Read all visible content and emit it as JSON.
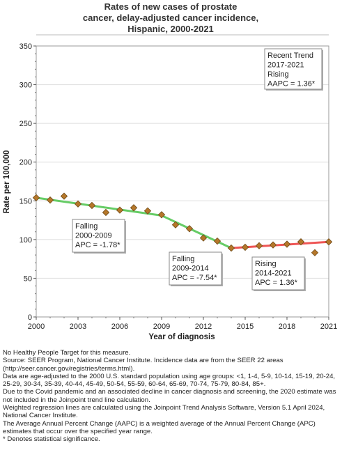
{
  "chart_data": {
    "type": "line",
    "title_lines": [
      "Rates of new cases of prostate",
      "cancer, delay-adjusted cancer incidence,",
      "Hispanic,  2000-2021"
    ],
    "xlabel": "Year of diagnosis",
    "ylabel": "Rate per 100,000",
    "xlim": [
      2000,
      2021
    ],
    "ylim": [
      0,
      350
    ],
    "x_ticks": [
      2000,
      2003,
      2006,
      2009,
      2012,
      2015,
      2018,
      2021
    ],
    "y_ticks": [
      0,
      50,
      100,
      150,
      200,
      250,
      300,
      350
    ],
    "grid": "horizontal",
    "observed": {
      "x": [
        2000,
        2001,
        2002,
        2003,
        2004,
        2005,
        2006,
        2007,
        2008,
        2009,
        2010,
        2011,
        2012,
        2013,
        2014,
        2015,
        2016,
        2017,
        2018,
        2019,
        2020,
        2021
      ],
      "y": [
        154,
        151,
        156,
        146,
        144,
        135,
        138,
        141,
        137,
        132,
        119,
        114,
        102,
        98,
        89,
        90,
        92,
        93,
        94,
        97,
        83,
        97
      ],
      "marker_color": "#b5772a"
    },
    "trend_segments": [
      {
        "x": [
          2000,
          2009
        ],
        "y": [
          154,
          131
        ],
        "color": "#66cc66"
      },
      {
        "x": [
          2009,
          2014
        ],
        "y": [
          131,
          89
        ],
        "color": "#66cc66"
      },
      {
        "x": [
          2014,
          2021
        ],
        "y": [
          89,
          97
        ],
        "color": "#ee5555"
      }
    ],
    "annotations": [
      {
        "lines": [
          "Falling",
          "2000-2009",
          "APC = -1.78*"
        ]
      },
      {
        "lines": [
          "Falling",
          "2009-2014",
          "APC = -7.54*"
        ]
      },
      {
        "lines": [
          "Rising",
          "2014-2021",
          "APC =  1.36*"
        ]
      },
      {
        "lines": [
          "Recent Trend",
          "2017-2021",
          "Rising",
          "AAPC =  1.36*"
        ]
      }
    ]
  },
  "footnotes": [
    "No Healthy People Target for this measure.",
    "Source: SEER Program, National Cancer Institute. Incidence data are from the SEER 22 areas (http://seer.cancer.gov/registries/terms.html).",
    "Data are age-adjusted to the 2000 U.S. standard population using age groups: <1, 1-4, 5-9, 10-14, 15-19, 20-24, 25-29, 30-34, 35-39, 40-44, 45-49, 50-54, 55-59, 60-64, 65-69, 70-74, 75-79, 80-84, 85+.",
    "Due to the Covid pandemic and an associated decline in cancer diagnosis and screening, the 2020 estimate was not included in the Joinpoint trend line calculation.",
    "Weighted regression lines are calculated using the Joinpoint Trend Analysis Software, Version 5.1 April 2024, National Cancer Institute.",
    "The Average Annual Percent Change (AAPC) is a weighted average of the Annual Percent Change (APC) estimates that occur over the specified year range.",
    "* Denotes statistical significance."
  ]
}
